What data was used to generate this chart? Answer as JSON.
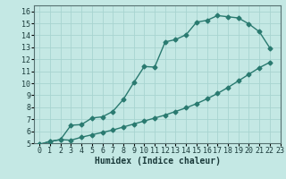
{
  "xlabel": "Humidex (Indice chaleur)",
  "ylabel": "",
  "background_color": "#c4e8e4",
  "grid_color": "#a8d4d0",
  "line_color": "#2a7a70",
  "xlim": [
    -0.5,
    23
  ],
  "ylim": [
    5,
    16.5
  ],
  "xticks": [
    0,
    1,
    2,
    3,
    4,
    5,
    6,
    7,
    8,
    9,
    10,
    11,
    12,
    13,
    14,
    15,
    16,
    17,
    18,
    19,
    20,
    21,
    22,
    23
  ],
  "yticks": [
    5,
    6,
    7,
    8,
    9,
    10,
    11,
    12,
    13,
    14,
    15,
    16
  ],
  "upper_x": [
    0,
    1,
    2,
    3,
    4,
    5,
    6,
    7,
    8,
    9,
    10,
    11,
    12,
    13,
    14,
    15,
    16,
    17,
    18,
    19,
    20,
    21,
    22
  ],
  "upper_y": [
    4.9,
    5.15,
    5.3,
    6.5,
    6.55,
    7.1,
    7.2,
    7.65,
    8.65,
    10.05,
    11.4,
    11.35,
    13.45,
    13.65,
    14.05,
    15.1,
    15.25,
    15.65,
    15.55,
    15.45,
    14.95,
    14.3,
    12.95
  ],
  "lower_x": [
    0,
    1,
    2,
    3,
    4,
    5,
    6,
    7,
    8,
    9,
    10,
    11,
    12,
    13,
    14,
    15,
    16,
    17,
    18,
    19,
    20,
    21,
    22
  ],
  "lower_y": [
    4.9,
    5.15,
    5.3,
    5.25,
    5.5,
    5.7,
    5.9,
    6.1,
    6.35,
    6.6,
    6.85,
    7.1,
    7.35,
    7.65,
    7.95,
    8.3,
    8.7,
    9.15,
    9.65,
    10.2,
    10.75,
    11.3,
    11.75
  ],
  "marker": "D",
  "markersize": 2.5,
  "linewidth": 1.0,
  "xlabel_fontsize": 7,
  "tick_fontsize": 6
}
